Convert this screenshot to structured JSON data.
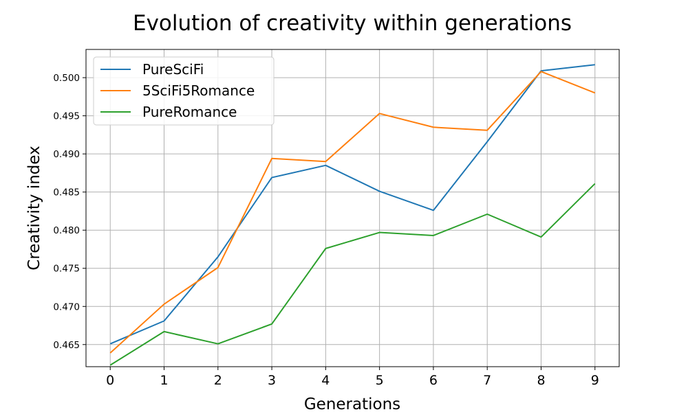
{
  "chart_data": {
    "type": "line",
    "title": "Evolution of creativity within generations",
    "xlabel": "Generations",
    "ylabel": "Creativity index",
    "x": [
      0,
      1,
      2,
      3,
      4,
      5,
      6,
      7,
      8,
      9
    ],
    "xlim": [
      -0.45,
      9.45
    ],
    "ylim": [
      0.4621,
      0.5037
    ],
    "yticks": [
      "0.465",
      "0.470",
      "0.475",
      "0.480",
      "0.485",
      "0.490",
      "0.495",
      "0.500"
    ],
    "xticks": [
      "0",
      "1",
      "2",
      "3",
      "4",
      "5",
      "6",
      "7",
      "8",
      "9"
    ],
    "grid": true,
    "legend_position": "top-left",
    "series": [
      {
        "name": "PureSciFi",
        "color": "#1f77b4",
        "values": [
          0.4651,
          0.4681,
          0.4765,
          0.4869,
          0.4885,
          0.4851,
          0.4826,
          0.4916,
          0.5009,
          0.5017
        ]
      },
      {
        "name": "5SciFi5Romance",
        "color": "#ff7f0e",
        "values": [
          0.4639,
          0.4703,
          0.4751,
          0.4894,
          0.489,
          0.4953,
          0.4935,
          0.4931,
          0.5008,
          0.498
        ]
      },
      {
        "name": "PureRomance",
        "color": "#2ca02c",
        "values": [
          0.4623,
          0.4667,
          0.4651,
          0.4677,
          0.4776,
          0.4797,
          0.4793,
          0.4821,
          0.4791,
          0.4861
        ]
      }
    ]
  }
}
